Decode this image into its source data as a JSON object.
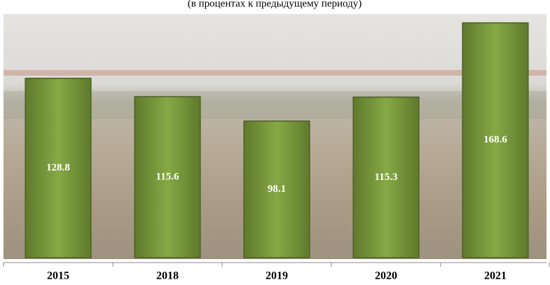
{
  "chart_data": {
    "type": "bar",
    "subtitle": "(в процентах к предыдущему периоду)",
    "categories": [
      "2015",
      "2018",
      "2019",
      "2020",
      "2021"
    ],
    "values": [
      128.8,
      115.6,
      98.1,
      115.3,
      168.6
    ],
    "color": "#77933c",
    "ylim": [
      0,
      185
    ]
  }
}
